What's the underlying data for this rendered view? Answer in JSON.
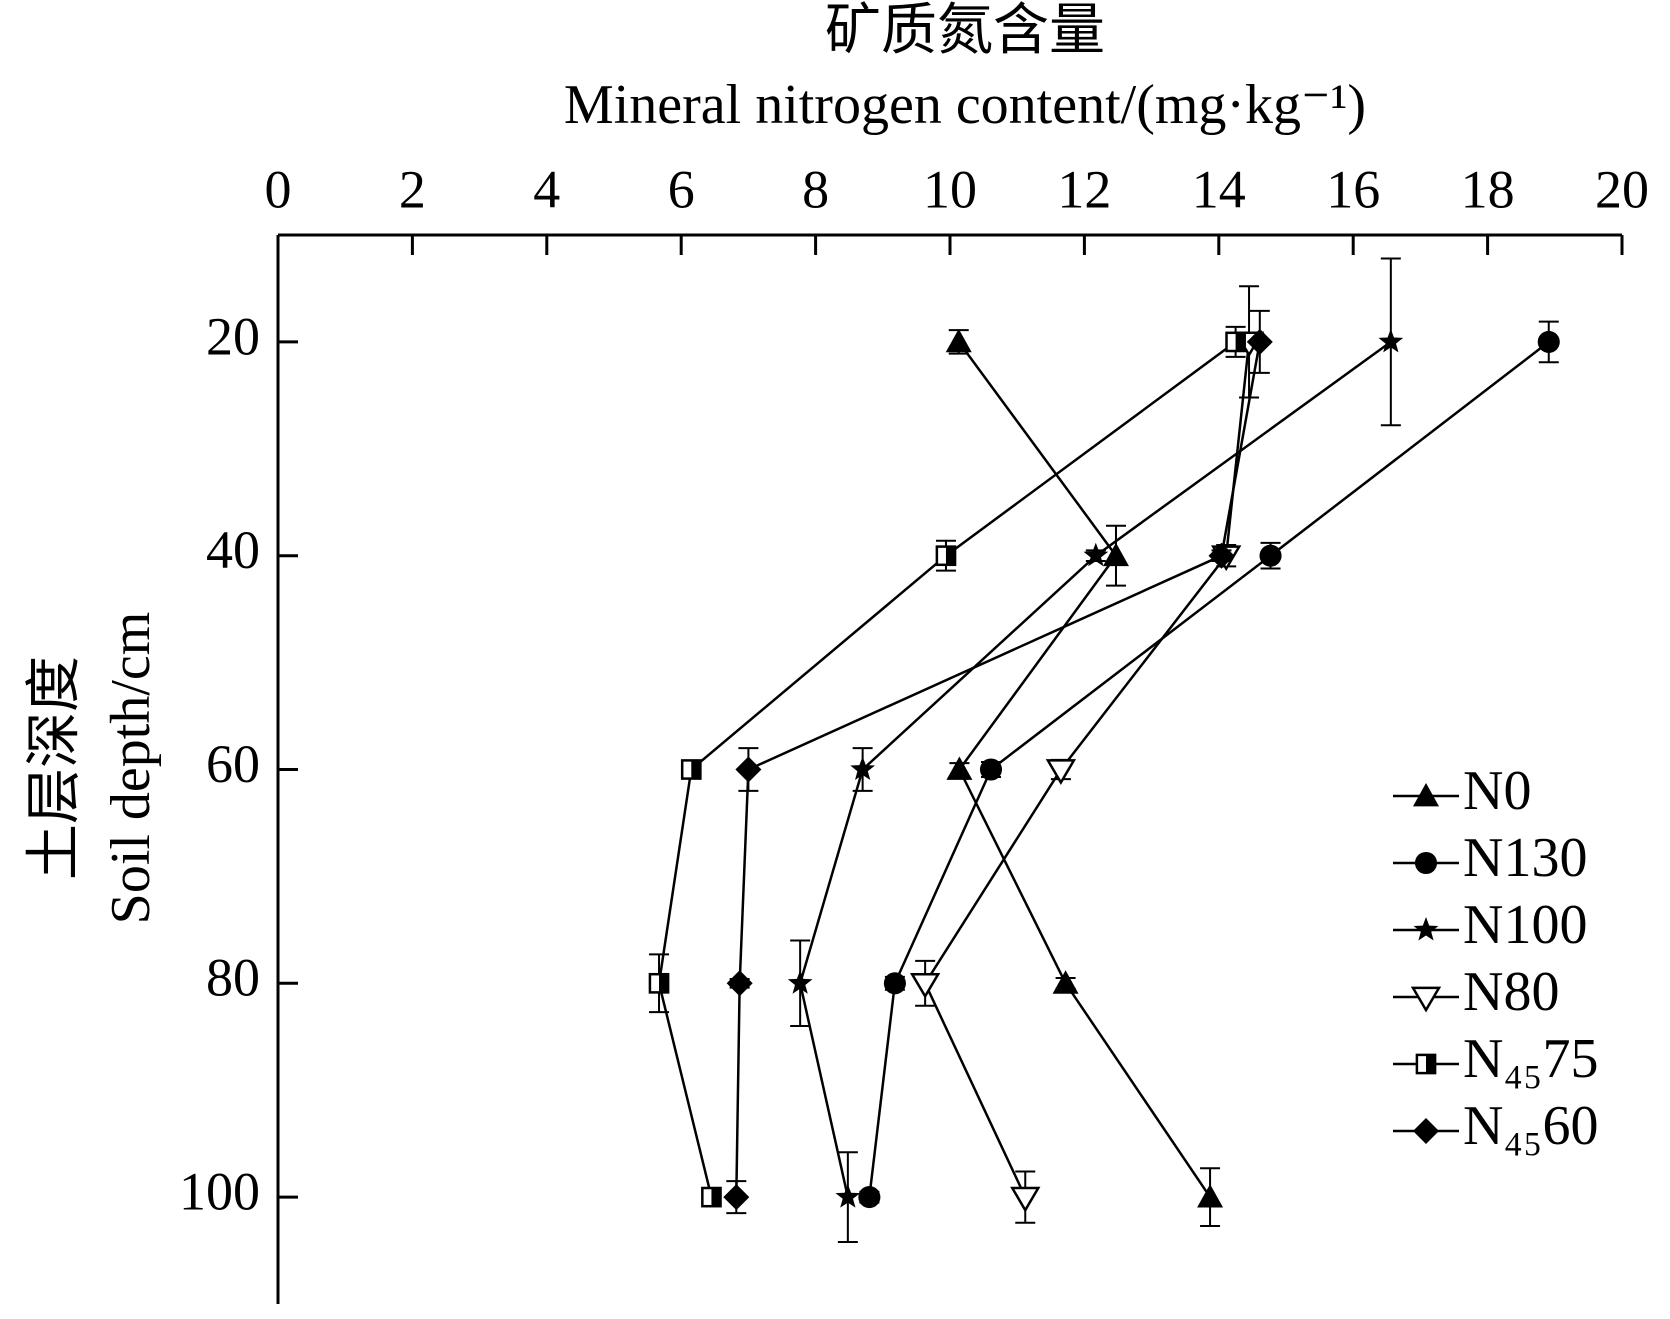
{
  "chart_data": {
    "type": "line",
    "title": "矿质氮含量",
    "x_label": "Mineral nitrogen content/(mg·kg⁻¹)",
    "y_label_cn": "土层深度",
    "y_label": "Soil depth/cm",
    "y": [
      20,
      40,
      60,
      80,
      100
    ],
    "xlim": [
      0,
      20
    ],
    "xticks": [
      0,
      2,
      4,
      6,
      8,
      10,
      12,
      14,
      16,
      18,
      20
    ],
    "ylim": [
      10,
      110
    ],
    "yticks": [
      20,
      40,
      60,
      80,
      100
    ],
    "y_inverted": true,
    "x_axis_position": "top",
    "legend": "right",
    "series": [
      {
        "name": "N0",
        "color": "#000000",
        "marker": "triangle-up",
        "values": [
          10.13,
          12.47,
          10.14,
          11.72,
          13.87
        ],
        "errors": [
          1.1,
          2.8,
          0.6,
          0.5,
          2.7
        ]
      },
      {
        "name": "N130",
        "color": "#000000",
        "marker": "circle",
        "values": [
          18.91,
          14.77,
          10.61,
          9.18,
          8.8
        ],
        "errors": [
          1.9,
          1.2,
          0.7,
          0.6,
          0.5
        ]
      },
      {
        "name": "N100",
        "color": "#000000",
        "marker": "star",
        "values": [
          16.56,
          12.17,
          8.7,
          7.77,
          8.48
        ],
        "errors": [
          7.8,
          0.5,
          2.0,
          4.0,
          4.2
        ]
      },
      {
        "name": "N80",
        "color": "#000000",
        "marker": "triangle-down-open",
        "values": [
          14.45,
          14.11,
          11.65,
          9.63,
          11.12
        ],
        "errors": [
          5.2,
          1.0,
          0.9,
          2.1,
          2.4
        ]
      },
      {
        "name": "N₄₅75",
        "color": "#000000",
        "marker": "square-half",
        "values": [
          14.25,
          9.94,
          6.15,
          5.67,
          6.45
        ],
        "errors": [
          1.4,
          1.4,
          0.5,
          2.7,
          0.6
        ]
      },
      {
        "name": "N₄₅60",
        "color": "#000000",
        "marker": "diamond",
        "values": [
          14.61,
          14.04,
          7.0,
          6.87,
          6.82
        ],
        "errors": [
          2.9,
          0.5,
          2.0,
          0.4,
          1.5
        ]
      }
    ]
  }
}
